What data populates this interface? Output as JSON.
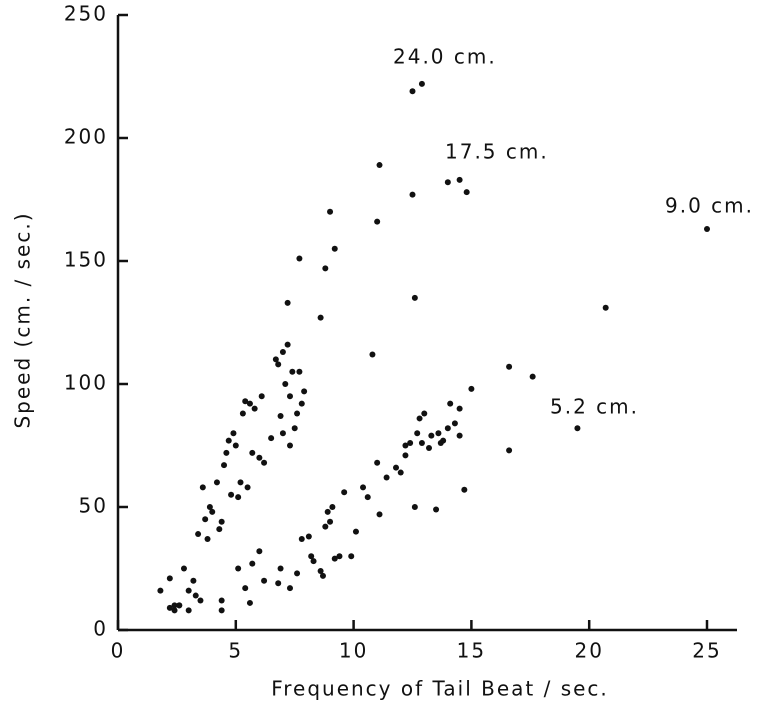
{
  "chart_data": {
    "type": "scatter",
    "xlabel": "Frequency of Tail Beat / sec.",
    "ylabel": "Speed (cm. / sec.)",
    "annotations": [
      "24.0 cm.",
      "17.5 cm.",
      "9.0 cm.",
      "5.2 cm."
    ],
    "xlim": [
      0,
      25
    ],
    "ylim": [
      0,
      250
    ],
    "xticks": [
      0,
      5,
      10,
      15,
      20,
      25
    ],
    "yticks": [
      0,
      50,
      100,
      150,
      200,
      250
    ],
    "color": "#111111",
    "x": [
      2.2,
      2.4,
      2.6,
      2.8,
      3.0,
      3.2,
      3.4,
      3.5,
      3.6,
      3.7,
      3.8,
      3.9,
      4.0,
      4.2,
      4.3,
      4.4,
      4.5,
      4.6,
      4.7,
      4.8,
      4.9,
      5.0,
      5.1,
      5.2,
      5.3,
      5.4,
      5.5,
      5.6,
      5.7,
      5.8,
      6.0,
      6.1,
      6.2,
      6.5,
      6.7,
      6.8,
      6.9,
      7.0,
      7.0,
      7.1,
      7.2,
      7.3,
      7.3,
      7.4,
      7.5,
      7.6,
      7.7,
      7.8,
      7.9,
      7.2,
      7.7,
      8.6,
      8.8,
      9.0,
      9.2,
      10.8,
      11.0,
      11.1,
      12.5,
      12.6,
      12.5,
      12.9,
      14.0,
      14.5,
      14.8,
      16.6,
      17.6,
      20.7,
      25.0,
      19.5,
      16.6,
      15.0,
      1.8,
      2.2,
      2.4,
      2.6,
      3.0,
      3.3,
      4.4,
      4.4,
      5.1,
      5.4,
      5.6,
      5.7,
      6.0,
      6.2,
      6.8,
      6.9,
      7.3,
      7.6,
      7.8,
      8.1,
      8.2,
      8.3,
      8.6,
      8.7,
      8.8,
      8.9,
      9.0,
      9.1,
      9.2,
      9.4,
      9.6,
      9.9,
      10.1,
      10.4,
      10.6,
      11.0,
      11.1,
      11.4,
      11.8,
      12.0,
      12.2,
      12.4,
      12.6,
      12.7,
      12.8,
      12.9,
      13.0,
      13.2,
      13.3,
      13.5,
      13.6,
      13.8,
      14.0,
      14.1,
      14.3,
      14.5,
      14.5,
      14.7,
      12.2,
      13.7
    ],
    "values": [
      9,
      8,
      10,
      25,
      8,
      20,
      39,
      12,
      58,
      45,
      37,
      50,
      48,
      60,
      41,
      44,
      67,
      72,
      77,
      55,
      80,
      75,
      54,
      60,
      88,
      93,
      58,
      92,
      72,
      90,
      70,
      95,
      68,
      78,
      110,
      108,
      87,
      113,
      80,
      100,
      116,
      95,
      75,
      105,
      82,
      88,
      105,
      92,
      97,
      133,
      151,
      127,
      147,
      170,
      155,
      112,
      166,
      189,
      177,
      135,
      219,
      222,
      182,
      183,
      178,
      107,
      103,
      131,
      163,
      82,
      73,
      98,
      16,
      21,
      10,
      10,
      16,
      14,
      8,
      12,
      25,
      17,
      11,
      27,
      32,
      20,
      19,
      25,
      17,
      23,
      37,
      38,
      30,
      28,
      24,
      22,
      42,
      48,
      44,
      50,
      29,
      30,
      56,
      30,
      40,
      58,
      54,
      68,
      47,
      62,
      66,
      64,
      71,
      76,
      50,
      80,
      86,
      76,
      88,
      74,
      79,
      49,
      80,
      77,
      82,
      92,
      84,
      90,
      79,
      57,
      75,
      76
    ]
  }
}
